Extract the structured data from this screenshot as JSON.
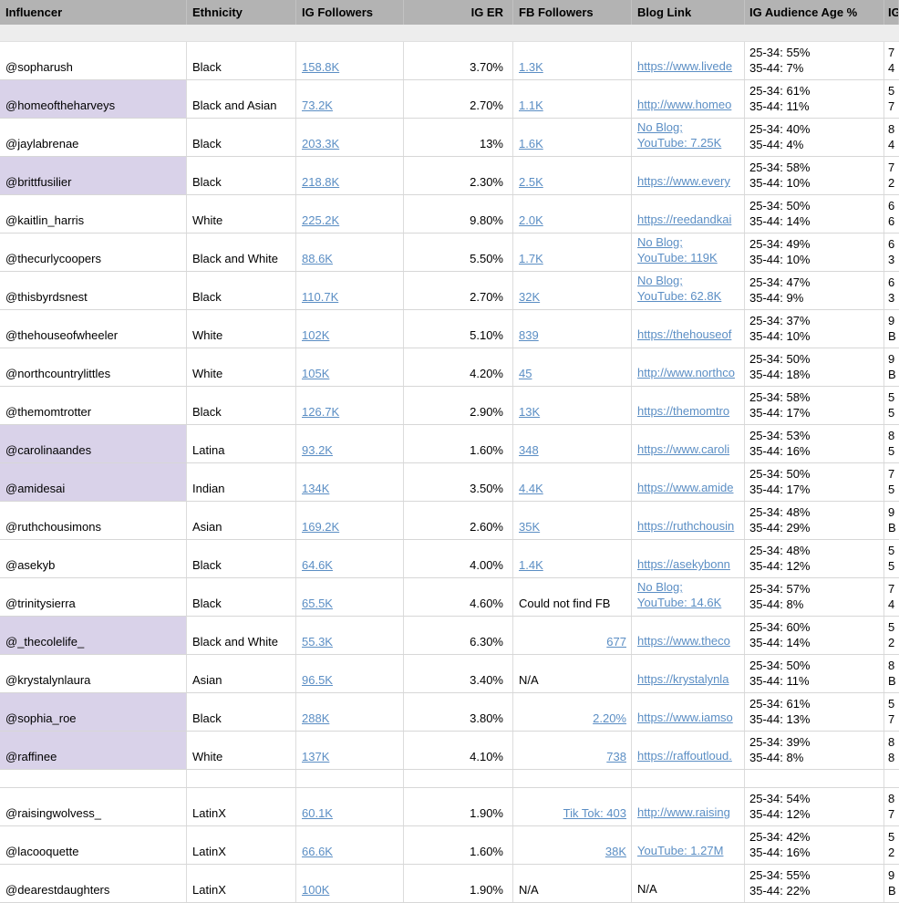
{
  "colors": {
    "header_bg": "#b3b3b3",
    "row_highlight": "#d9d2e9",
    "link": "#5b8ec4",
    "gridline": "#d7d7d7"
  },
  "header": {
    "columns": [
      {
        "label": "Influencer"
      },
      {
        "label": "Ethnicity"
      },
      {
        "label": "IG Followers"
      },
      {
        "label": "IG ER"
      },
      {
        "label": "FB Followers"
      },
      {
        "label": "Blog Link"
      },
      {
        "label": "IG Audience Age %"
      },
      {
        "label": "IG"
      }
    ]
  },
  "rows": [
    {
      "influencer": "@sopharush",
      "highlight": false,
      "ethnicity": "Black",
      "ig_followers": "158.8K",
      "ig_er": "3.70%",
      "fb": {
        "text": "1.3K",
        "link": true,
        "align": "left"
      },
      "blog": [
        {
          "text": "https://www.livede",
          "link": true
        }
      ],
      "age": [
        "25-34: 55%",
        "35-44: 7%"
      ],
      "last": [
        "7",
        "4"
      ]
    },
    {
      "influencer": "@homeoftheharveys",
      "highlight": true,
      "ethnicity": "Black and Asian",
      "ig_followers": "73.2K",
      "ig_er": "2.70%",
      "fb": {
        "text": "1.1K",
        "link": true,
        "align": "left"
      },
      "blog": [
        {
          "text": "http://www.homeo",
          "link": true
        }
      ],
      "age": [
        "25-34: 61%",
        "35-44: 11%"
      ],
      "last": [
        "5",
        "7"
      ]
    },
    {
      "influencer": "@jaylabrenae",
      "highlight": false,
      "ethnicity": "Black",
      "ig_followers": "203.3K",
      "ig_er": "13%",
      "fb": {
        "text": "1.6K",
        "link": true,
        "align": "left"
      },
      "blog": [
        {
          "text": "No Blog;",
          "link": true
        },
        {
          "text": "YouTube: 7.25K",
          "link": true
        }
      ],
      "age": [
        "25-34: 40%",
        "35-44: 4%"
      ],
      "last": [
        "8",
        "4"
      ]
    },
    {
      "influencer": "@brittfusilier",
      "highlight": true,
      "ethnicity": "Black",
      "ig_followers": "218.8K",
      "ig_er": "2.30%",
      "fb": {
        "text": "2.5K",
        "link": true,
        "align": "left"
      },
      "blog": [
        {
          "text": "https://www.every",
          "link": true
        }
      ],
      "age": [
        "25-34: 58%",
        "35-44: 10%"
      ],
      "last": [
        "7",
        "2"
      ]
    },
    {
      "influencer": "@kaitlin_harris",
      "highlight": false,
      "ethnicity": "White",
      "ig_followers": "225.2K",
      "ig_er": "9.80%",
      "fb": {
        "text": "2.0K",
        "link": true,
        "align": "left"
      },
      "blog": [
        {
          "text": "https://reedandkai",
          "link": true
        }
      ],
      "age": [
        "25-34: 50%",
        "35-44: 14%"
      ],
      "last": [
        "6",
        "6"
      ]
    },
    {
      "influencer": "@thecurlycoopers",
      "highlight": false,
      "ethnicity": "Black and White",
      "ig_followers": "88.6K",
      "ig_er": "5.50%",
      "fb": {
        "text": "1.7K",
        "link": true,
        "align": "left"
      },
      "blog": [
        {
          "text": "No Blog;",
          "link": true
        },
        {
          "text": "YouTube: 119K",
          "link": true
        }
      ],
      "age": [
        "25-34: 49%",
        "35-44: 10%"
      ],
      "last": [
        "6",
        "3"
      ]
    },
    {
      "influencer": "@thisbyrdsnest",
      "highlight": false,
      "ethnicity": "Black",
      "ig_followers": "110.7K",
      "ig_er": "2.70%",
      "fb": {
        "text": "32K",
        "link": true,
        "align": "left"
      },
      "blog": [
        {
          "text": "No Blog;",
          "link": true
        },
        {
          "text": "YouTube: 62.8K",
          "link": true
        }
      ],
      "age": [
        "25-34: 47%",
        "35-44: 9%"
      ],
      "last": [
        "6",
        "3"
      ]
    },
    {
      "influencer": "@thehouseofwheeler",
      "highlight": false,
      "ethnicity": "White",
      "ig_followers": "102K",
      "ig_er": "5.10%",
      "fb": {
        "text": "839",
        "link": true,
        "align": "left"
      },
      "blog": [
        {
          "text": "https://thehouseof",
          "link": true
        }
      ],
      "age": [
        "25-34: 37%",
        "35-44: 10%"
      ],
      "last": [
        "9",
        "B"
      ]
    },
    {
      "influencer": "@northcountrylittles",
      "highlight": false,
      "ethnicity": "White",
      "ig_followers": "105K",
      "ig_er": "4.20%",
      "fb": {
        "text": "45",
        "link": true,
        "align": "left"
      },
      "blog": [
        {
          "text": "http://www.northco",
          "link": true
        }
      ],
      "age": [
        "25-34: 50%",
        "35-44: 18%"
      ],
      "last": [
        "9",
        "B"
      ]
    },
    {
      "influencer": "@themomtrotter",
      "highlight": false,
      "ethnicity": "Black",
      "ig_followers": "126.7K",
      "ig_er": "2.90%",
      "fb": {
        "text": "13K",
        "link": true,
        "align": "left"
      },
      "blog": [
        {
          "text": "https://themomtro",
          "link": true
        }
      ],
      "age": [
        "25-34: 58%",
        "35-44: 17%"
      ],
      "last": [
        "5",
        "5"
      ]
    },
    {
      "influencer": "@carolinaandes",
      "highlight": true,
      "ethnicity": "Latina",
      "ig_followers": "93.2K",
      "ig_er": "1.60%",
      "fb": {
        "text": "348",
        "link": true,
        "align": "left"
      },
      "blog": [
        {
          "text": "https://www.caroli",
          "link": true
        }
      ],
      "age": [
        "25-34: 53%",
        "35-44: 16%"
      ],
      "last": [
        "8",
        "5"
      ]
    },
    {
      "influencer": "@amidesai",
      "highlight": true,
      "ethnicity": "Indian",
      "ig_followers": "134K",
      "ig_er": "3.50%",
      "fb": {
        "text": "4.4K",
        "link": true,
        "align": "left"
      },
      "blog": [
        {
          "text": "https://www.amide",
          "link": true
        }
      ],
      "age": [
        "25-34: 50%",
        "35-44: 17%"
      ],
      "last": [
        "7",
        "5"
      ]
    },
    {
      "influencer": "@ruthchousimons",
      "highlight": false,
      "ethnicity": "Asian",
      "ig_followers": "169.2K",
      "ig_er": "2.60%",
      "fb": {
        "text": "35K",
        "link": true,
        "align": "left"
      },
      "blog": [
        {
          "text": "https://ruthchousin",
          "link": true
        }
      ],
      "age": [
        "25-34: 48%",
        "35-44: 29%"
      ],
      "last": [
        "9",
        "B"
      ]
    },
    {
      "influencer": "@asekyb",
      "highlight": false,
      "ethnicity": "Black",
      "ig_followers": "64.6K",
      "ig_er": "4.00%",
      "fb": {
        "text": "1.4K",
        "link": true,
        "align": "left"
      },
      "blog": [
        {
          "text": "https://asekybonn",
          "link": true
        }
      ],
      "age": [
        "25-34: 48%",
        "35-44: 12%"
      ],
      "last": [
        "5",
        "5"
      ]
    },
    {
      "influencer": "@trinitysierra",
      "highlight": false,
      "ethnicity": "Black",
      "ig_followers": "65.5K",
      "ig_er": "4.60%",
      "fb": {
        "text": "Could not find FB",
        "link": false,
        "align": "left"
      },
      "blog": [
        {
          "text": "No Blog;",
          "link": true
        },
        {
          "text": "YouTube: 14.6K",
          "link": true
        }
      ],
      "age": [
        "25-34: 57%",
        "35-44: 8%"
      ],
      "last": [
        "7",
        "4"
      ]
    },
    {
      "influencer": "@_thecolelife_",
      "highlight": true,
      "ethnicity": "Black and White",
      "ig_followers": "55.3K",
      "ig_er": "6.30%",
      "fb": {
        "text": "677",
        "link": true,
        "align": "right"
      },
      "blog": [
        {
          "text": "https://www.theco",
          "link": true
        }
      ],
      "age": [
        "25-34: 60%",
        "35-44: 14%"
      ],
      "last": [
        "5",
        "2"
      ]
    },
    {
      "influencer": "@krystalynlaura",
      "highlight": false,
      "ethnicity": "Asian",
      "ig_followers": "96.5K",
      "ig_er": "3.40%",
      "fb": {
        "text": "N/A",
        "link": false,
        "align": "left"
      },
      "blog": [
        {
          "text": "https://krystalynla",
          "link": true
        }
      ],
      "age": [
        "25-34: 50%",
        "35-44: 11%"
      ],
      "last": [
        "8",
        "B"
      ]
    },
    {
      "influencer": "@sophia_roe",
      "highlight": true,
      "ethnicity": "Black",
      "ig_followers": "288K",
      "ig_er": "3.80%",
      "fb": {
        "text": "2.20%",
        "link": true,
        "align": "right"
      },
      "blog": [
        {
          "text": "https://www.iamso",
          "link": true
        }
      ],
      "age": [
        "25-34: 61%",
        "35-44: 13%"
      ],
      "last": [
        "5",
        "7"
      ]
    },
    {
      "influencer": "@raffinee",
      "highlight": true,
      "ethnicity": "White",
      "ig_followers": "137K",
      "ig_er": "4.10%",
      "fb": {
        "text": "738",
        "link": true,
        "align": "right"
      },
      "blog": [
        {
          "text": "https://raffoutloud.",
          "link": true
        }
      ],
      "age": [
        "25-34: 39%",
        "35-44: 8%"
      ],
      "last": [
        "8",
        "8"
      ]
    },
    {
      "spacer": true
    },
    {
      "influencer": "@raisingwolvess_",
      "highlight": false,
      "ethnicity": "LatinX",
      "ig_followers": "60.1K",
      "ig_er": "1.90%",
      "fb": {
        "text": "Tik Tok: 403",
        "link": true,
        "align": "right"
      },
      "blog": [
        {
          "text": "http://www.raising",
          "link": true
        }
      ],
      "age": [
        "25-34: 54%",
        "35-44: 12%"
      ],
      "last": [
        "8",
        "7"
      ]
    },
    {
      "influencer": "@lacooquette",
      "highlight": false,
      "ethnicity": "LatinX",
      "ig_followers": "66.6K",
      "ig_er": "1.60%",
      "fb": {
        "text": "38K",
        "link": true,
        "align": "right"
      },
      "blog": [
        {
          "text": "YouTube: 1.27M",
          "link": true
        }
      ],
      "age": [
        "25-34: 42%",
        "35-44: 16%"
      ],
      "last": [
        "5",
        "2"
      ]
    },
    {
      "influencer": "@dearestdaughters",
      "highlight": false,
      "ethnicity": "LatinX",
      "ig_followers": "100K",
      "ig_er": "1.90%",
      "fb": {
        "text": "N/A",
        "link": false,
        "align": "left"
      },
      "blog": [
        {
          "text": "N/A",
          "link": false
        }
      ],
      "age": [
        "25-34: 55%",
        "35-44: 22%"
      ],
      "last": [
        "9",
        "B"
      ]
    }
  ]
}
